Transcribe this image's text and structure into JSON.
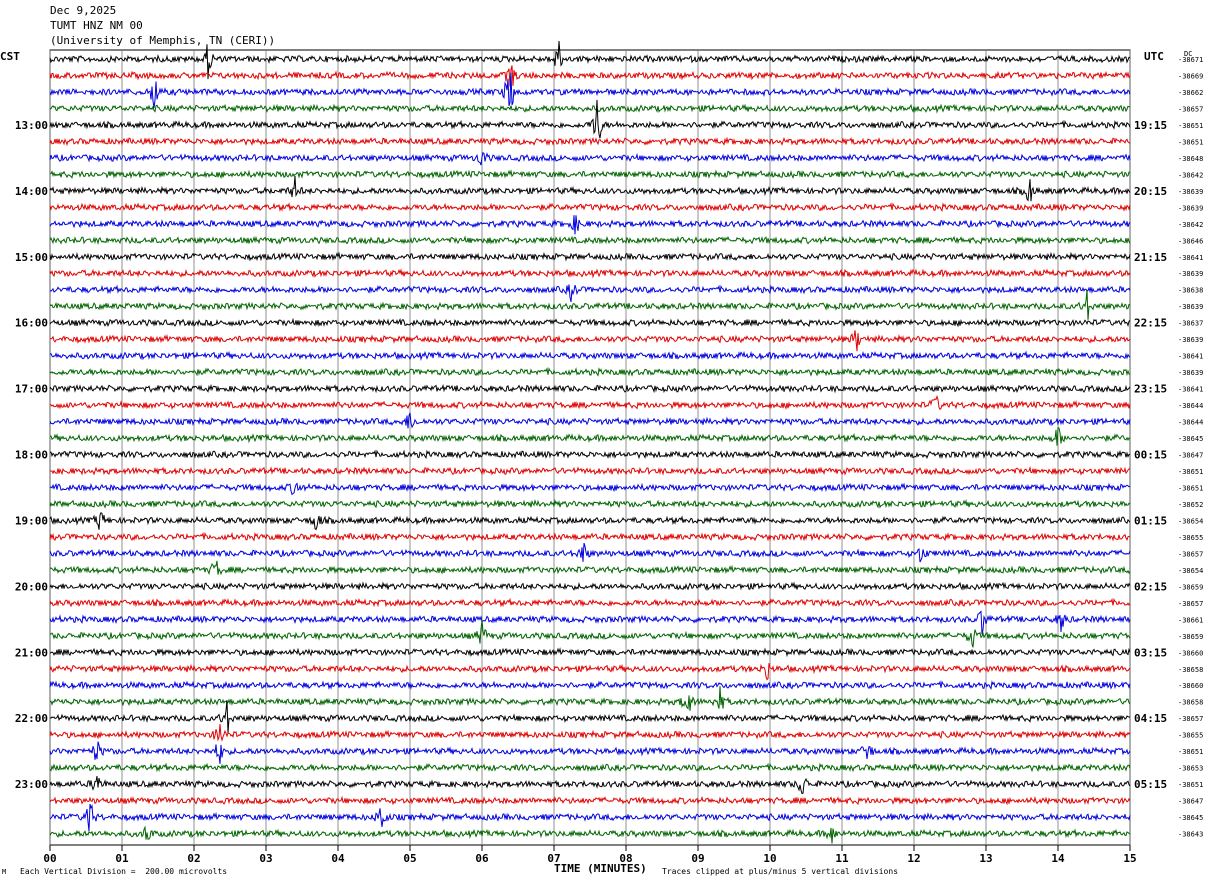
{
  "header": {
    "date": "Dec 9,2025",
    "station": "TUMT HNZ NM 00",
    "institution": "(University of Memphis, TN (CERI))"
  },
  "left_timezone": "CST",
  "right_timezone": "UTC",
  "footer": {
    "left_mark": "M",
    "scale_note": "Each Vertical Division =  200.00 microvolts",
    "x_title": "TIME (MINUTES)",
    "clip_note": "Traces clipped at plus/minus 5 vertical divisions"
  },
  "chart_data": {
    "type": "line",
    "title": "",
    "xlabel": "TIME (MINUTES)",
    "ylabel": "",
    "xlim": [
      0,
      15
    ],
    "x_ticks": [
      "00",
      "01",
      "02",
      "03",
      "04",
      "05",
      "06",
      "07",
      "08",
      "09",
      "10",
      "11",
      "12",
      "13",
      "14",
      "15"
    ],
    "grid": "vertical lines at each minute",
    "trace_colors": [
      "#000000",
      "#e00000",
      "#0000e0",
      "#006400"
    ],
    "left_hour_labels": [
      "13:00",
      "14:00",
      "15:00",
      "16:00",
      "17:00",
      "18:00",
      "19:00",
      "20:00",
      "21:00",
      "22:00",
      "23:00"
    ],
    "right_hour_labels": [
      "19:15",
      "20:15",
      "21:15",
      "22:15",
      "23:15",
      "00:15",
      "01:15",
      "02:15",
      "03:15",
      "04:15",
      "05:15"
    ],
    "dc_label": "DC",
    "dc_offsets": [
      -38671,
      -38669,
      -38662,
      -38657,
      -38651,
      -38651,
      -38648,
      -38642,
      -38639,
      -38639,
      -38642,
      -38646,
      -38641,
      -38639,
      -38638,
      -38639,
      -38637,
      -38639,
      -38641,
      -38639,
      -38641,
      -38644,
      -38644,
      -38645,
      -38647,
      -38651,
      -38651,
      -38652,
      -38654,
      -38655,
      -38657,
      -38654,
      -38659,
      -38657,
      -38661,
      -38659,
      -38660,
      -38658,
      -38660,
      -38658,
      -38657,
      -38655,
      -38651,
      -38653,
      -38651,
      -38647,
      -38645,
      -38643
    ],
    "events": [
      {
        "trace": 0,
        "minute": 2.2,
        "amp": 0.55
      },
      {
        "trace": 0,
        "minute": 7.05,
        "amp": 0.7
      },
      {
        "trace": 1,
        "minute": 6.4,
        "amp": 0.5
      },
      {
        "trace": 2,
        "minute": 6.38,
        "amp": 1.0
      },
      {
        "trace": 2,
        "minute": 1.45,
        "amp": 0.6
      },
      {
        "trace": 4,
        "minute": 7.6,
        "amp": 0.9
      },
      {
        "trace": 6,
        "minute": 6.0,
        "amp": 0.3
      },
      {
        "trace": 8,
        "minute": 13.6,
        "amp": 0.45
      },
      {
        "trace": 8,
        "minute": 3.4,
        "amp": 0.35
      },
      {
        "trace": 10,
        "minute": 7.3,
        "amp": 0.3
      },
      {
        "trace": 15,
        "minute": 14.4,
        "amp": 0.45
      },
      {
        "trace": 14,
        "minute": 7.25,
        "amp": 0.35
      },
      {
        "trace": 17,
        "minute": 11.2,
        "amp": 0.35
      },
      {
        "trace": 21,
        "minute": 12.3,
        "amp": 0.3
      },
      {
        "trace": 22,
        "minute": 5.0,
        "amp": 0.35
      },
      {
        "trace": 23,
        "minute": 14.0,
        "amp": 0.35
      },
      {
        "trace": 26,
        "minute": 3.4,
        "amp": 0.3
      },
      {
        "trace": 28,
        "minute": 0.7,
        "amp": 0.35
      },
      {
        "trace": 28,
        "minute": 3.7,
        "amp": 0.35
      },
      {
        "trace": 30,
        "minute": 7.4,
        "amp": 0.4
      },
      {
        "trace": 30,
        "minute": 12.1,
        "amp": 0.3
      },
      {
        "trace": 31,
        "minute": 2.3,
        "amp": 0.35
      },
      {
        "trace": 34,
        "minute": 12.95,
        "amp": 0.45
      },
      {
        "trace": 34,
        "minute": 14.05,
        "amp": 0.35
      },
      {
        "trace": 35,
        "minute": 6.0,
        "amp": 0.4
      },
      {
        "trace": 35,
        "minute": 12.8,
        "amp": 0.45
      },
      {
        "trace": 37,
        "minute": 9.95,
        "amp": 0.35
      },
      {
        "trace": 39,
        "minute": 8.85,
        "amp": 0.55
      },
      {
        "trace": 39,
        "minute": 9.3,
        "amp": 0.4
      },
      {
        "trace": 40,
        "minute": 2.45,
        "amp": 0.6
      },
      {
        "trace": 41,
        "minute": 2.35,
        "amp": 0.45
      },
      {
        "trace": 42,
        "minute": 0.65,
        "amp": 0.35
      },
      {
        "trace": 42,
        "minute": 2.35,
        "amp": 0.4
      },
      {
        "trace": 42,
        "minute": 11.35,
        "amp": 0.4
      },
      {
        "trace": 44,
        "minute": 0.65,
        "amp": 0.4
      },
      {
        "trace": 44,
        "minute": 10.45,
        "amp": 0.4
      },
      {
        "trace": 46,
        "minute": 0.55,
        "amp": 0.6
      },
      {
        "trace": 46,
        "minute": 4.6,
        "amp": 0.5
      },
      {
        "trace": 47,
        "minute": 1.35,
        "amp": 0.3
      },
      {
        "trace": 47,
        "minute": 10.85,
        "amp": 0.3
      }
    ]
  }
}
